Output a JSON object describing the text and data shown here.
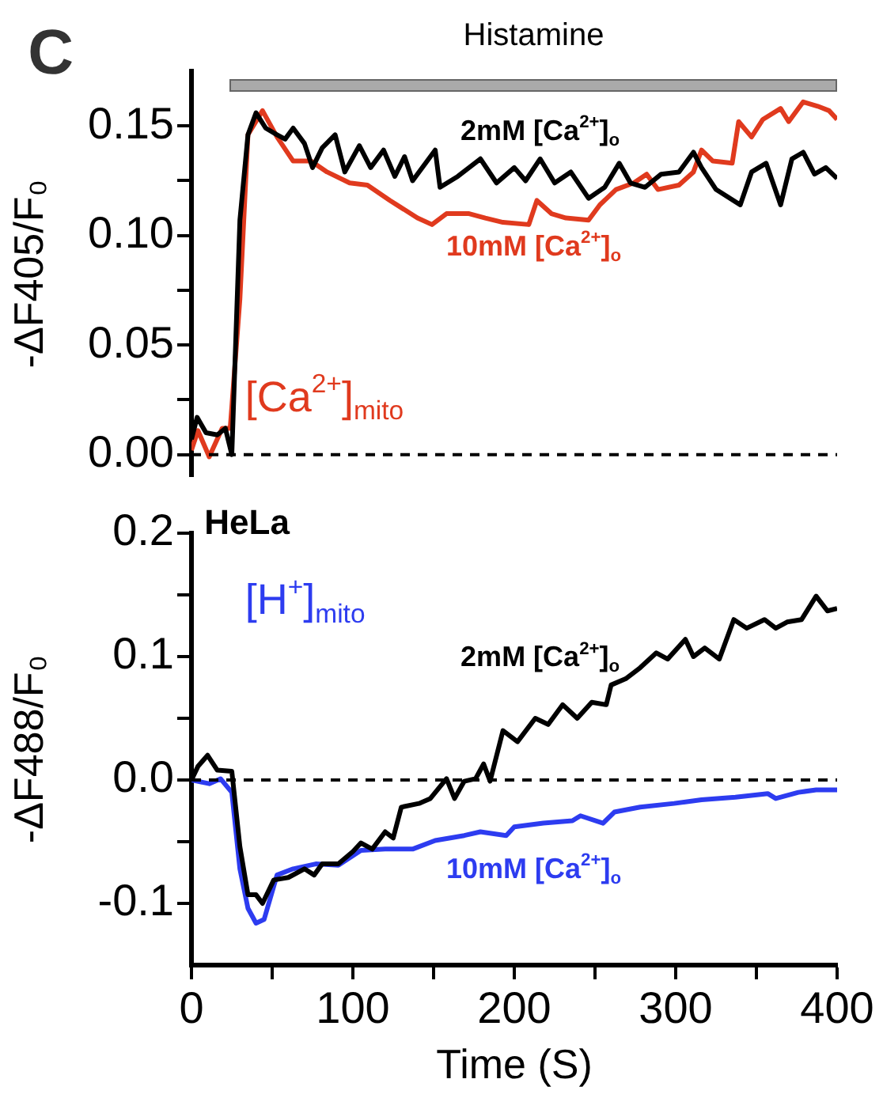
{
  "chart_data": [
    {
      "type": "line",
      "ylabel": "-ΔF405/F₀",
      "xlim": [
        0,
        400
      ],
      "ylim": [
        -0.01,
        0.175
      ],
      "tick_labels": "y",
      "grid": false,
      "legend": false,
      "marker": "none",
      "line_style": "solid",
      "yticks": [
        {
          "value": 0,
          "label": "0.00"
        },
        {
          "value": 0.025,
          "label": null
        },
        0.05,
        {
          "value": 0.075,
          "label": null
        },
        {
          "value": 0.1,
          "label": "0.10"
        },
        {
          "value": 0.125,
          "label": null
        },
        0.15
      ],
      "series": [
        {
          "name": "2mM [Ca$^{2+}$]$_{o}$",
          "color": "#000000",
          "x": [
            0,
            3.5,
            9,
            16,
            21,
            25,
            30,
            35,
            40,
            46,
            53,
            58,
            63,
            70,
            75,
            81,
            89,
            95,
            104,
            111,
            119,
            126,
            132,
            137,
            151,
            154,
            165,
            179,
            189,
            200,
            207,
            216,
            225,
            235,
            246,
            256,
            265,
            272,
            281,
            291,
            302,
            311,
            316,
            325,
            340,
            347,
            356,
            365,
            372,
            379,
            386,
            393,
            400
          ],
          "values": [
            0.007,
            0.017,
            0.01,
            0.009,
            0.012,
            0.0,
            0.107,
            0.146,
            0.156,
            0.149,
            0.146,
            0.144,
            0.149,
            0.142,
            0.131,
            0.14,
            0.146,
            0.129,
            0.141,
            0.131,
            0.139,
            0.127,
            0.136,
            0.125,
            0.139,
            0.122,
            0.127,
            0.135,
            0.124,
            0.131,
            0.125,
            0.135,
            0.124,
            0.129,
            0.117,
            0.122,
            0.133,
            0.124,
            0.122,
            0.128,
            0.129,
            0.138,
            0.131,
            0.121,
            0.114,
            0.129,
            0.133,
            0.114,
            0.135,
            0.138,
            0.128,
            0.131,
            0.126
          ]
        },
        {
          "name": "10mM [Ca$^{2+}$]$_{o}$",
          "color": "#e03a1e",
          "x": [
            0,
            4,
            11,
            19,
            24,
            30,
            35,
            44,
            53,
            63,
            74,
            84,
            98,
            109,
            123,
            140,
            149,
            158,
            172,
            182,
            193,
            209,
            214,
            223,
            232,
            246,
            253,
            263,
            274,
            282,
            289,
            302,
            311,
            316,
            323,
            335,
            339,
            347,
            354,
            365,
            370,
            379,
            388,
            395,
            400
          ],
          "values": [
            0.002,
            0.011,
            -0.001,
            0.012,
            0.012,
            0.071,
            0.146,
            0.157,
            0.145,
            0.134,
            0.134,
            0.129,
            0.124,
            0.123,
            0.116,
            0.108,
            0.105,
            0.11,
            0.11,
            0.108,
            0.106,
            0.105,
            0.116,
            0.11,
            0.108,
            0.107,
            0.114,
            0.121,
            0.124,
            0.128,
            0.121,
            0.123,
            0.129,
            0.139,
            0.134,
            0.133,
            0.152,
            0.145,
            0.153,
            0.158,
            0.152,
            0.161,
            0.159,
            0.157,
            0.153
          ]
        }
      ],
      "ref_lines": [
        {
          "axis": "y",
          "value": 0,
          "color": "#000000",
          "line_style": "dashed"
        }
      ],
      "annotations": [
        "C",
        "[Ca$^{2+}$]$_{mito}$",
        "Histamine"
      ]
    },
    {
      "type": "line",
      "ylabel": "-ΔF488/F₀",
      "xlabel": "Time (S)",
      "xlim": [
        0,
        400
      ],
      "ylim": [
        -0.15,
        0.2
      ],
      "grid": false,
      "legend": false,
      "marker": "none",
      "line_style": "solid",
      "xticks": [
        0,
        {
          "value": 50,
          "label": null
        },
        100,
        {
          "value": 150,
          "label": null
        },
        200,
        {
          "value": 250,
          "label": null
        },
        300,
        {
          "value": 350,
          "label": null
        },
        400
      ],
      "yticks": [
        -0.1,
        {
          "value": -0.05,
          "label": null
        },
        {
          "value": 0,
          "label": "0.0"
        },
        {
          "value": 0.05,
          "label": null
        },
        0.1,
        {
          "value": 0.15,
          "label": null
        },
        0.2
      ],
      "series": [
        {
          "name": "2mM [Ca$^{2+}$]$_{o}$",
          "color": "#000000",
          "x": [
            0,
            4,
            10,
            16,
            25,
            30,
            35,
            40,
            44,
            51,
            60,
            70,
            76,
            81,
            91,
            100,
            105,
            112,
            120,
            125,
            130,
            141,
            148,
            158,
            163,
            169,
            176,
            181,
            185,
            193,
            202,
            213,
            221,
            230,
            239,
            248,
            257,
            260,
            269,
            278,
            288,
            295,
            306,
            311,
            318,
            327,
            336,
            344,
            355,
            362,
            369,
            378,
            387,
            394,
            400
          ],
          "values": [
            0,
            0.011,
            0.02,
            0.008,
            0.007,
            -0.054,
            -0.093,
            -0.093,
            -0.1,
            -0.081,
            -0.079,
            -0.072,
            -0.077,
            -0.068,
            -0.068,
            -0.058,
            -0.051,
            -0.056,
            -0.042,
            -0.047,
            -0.022,
            -0.019,
            -0.015,
            0.001,
            -0.015,
            -0.001,
            0.001,
            0.013,
            -0.001,
            0.04,
            0.031,
            0.05,
            0.045,
            0.061,
            0.05,
            0.063,
            0.061,
            0.077,
            0.082,
            0.091,
            0.103,
            0.098,
            0.114,
            0.1,
            0.107,
            0.098,
            0.13,
            0.123,
            0.13,
            0.123,
            0.128,
            0.13,
            0.149,
            0.137,
            0.139
          ]
        },
        {
          "name": "10mM [Ca$^{2+}$]$_{o}$",
          "color": "#2d3cf0",
          "x": [
            0,
            11,
            18,
            25,
            30,
            35,
            40,
            45,
            53,
            63,
            77,
            91,
            105,
            120,
            137,
            151,
            169,
            179,
            195,
            200,
            218,
            236,
            241,
            255,
            262,
            278,
            299,
            316,
            337,
            357,
            362,
            376,
            387,
            400
          ],
          "values": [
            0,
            -0.003,
            0.001,
            -0.01,
            -0.072,
            -0.104,
            -0.116,
            -0.113,
            -0.077,
            -0.072,
            -0.068,
            -0.069,
            -0.057,
            -0.056,
            -0.056,
            -0.049,
            -0.045,
            -0.042,
            -0.045,
            -0.038,
            -0.035,
            -0.033,
            -0.029,
            -0.035,
            -0.026,
            -0.022,
            -0.019,
            -0.016,
            -0.014,
            -0.011,
            -0.015,
            -0.01,
            -0.008,
            -0.008
          ]
        }
      ],
      "ref_lines": [
        {
          "axis": "y",
          "value": 0,
          "color": "#000000",
          "line_style": "dashed"
        }
      ],
      "annotations": [
        "HeLa",
        "[H$^{+}$]$_{mito}$"
      ]
    }
  ]
}
